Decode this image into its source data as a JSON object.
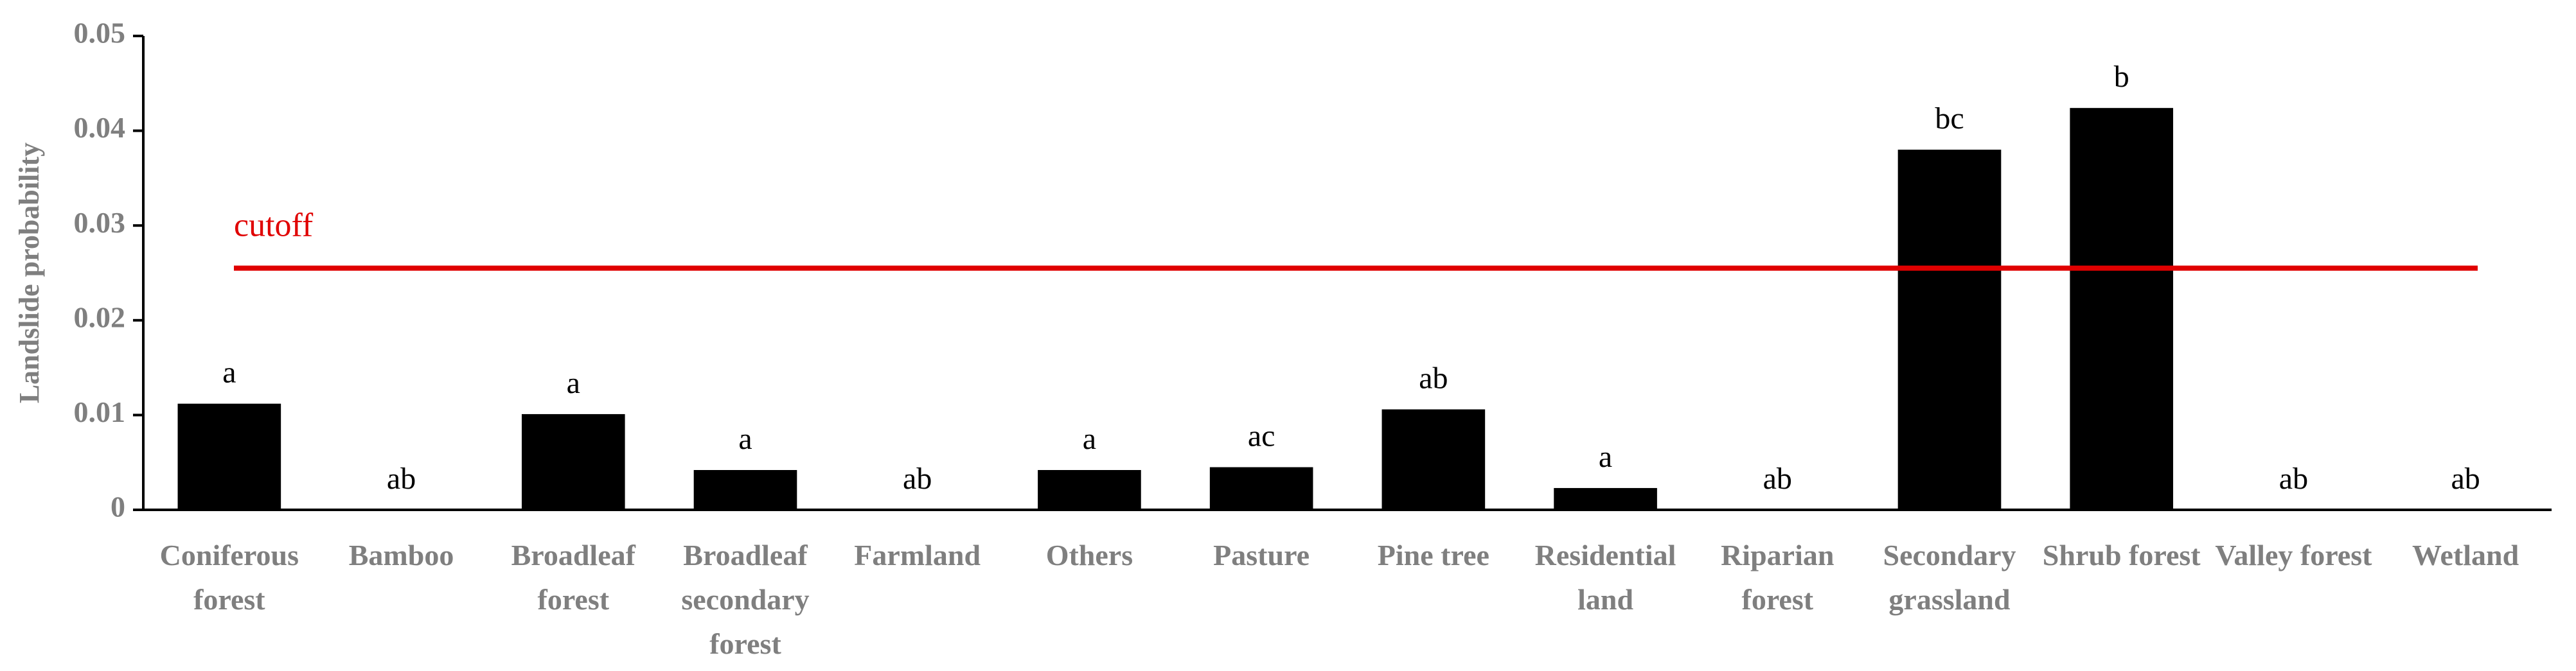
{
  "chart_data": {
    "type": "bar",
    "y_label": "Landslide probability",
    "categories": [
      "Coniferous forest",
      "Bamboo",
      "Broadleaf forest",
      "Broadleaf secondary forest",
      "Farmland",
      "Others",
      "Pasture",
      "Pine tree",
      "Residential land",
      "Riparian forest",
      "Secondary grassland",
      "Shrub forest",
      "Valley forest",
      "Wetland"
    ],
    "values": [
      0.0112,
      0,
      0.0101,
      0.0042,
      0,
      0.0042,
      0.0045,
      0.0106,
      0.0023,
      0,
      0.038,
      0.0424,
      0,
      0
    ],
    "letters": [
      "a",
      "ab",
      "a",
      "a",
      "ab",
      "a",
      "ac",
      "ab",
      "a",
      "ab",
      "bc",
      "b",
      "ab",
      "ab"
    ],
    "color": "#000000",
    "cutoff": {
      "label": "cutoff",
      "value": 0.0255,
      "color": "#e00000"
    },
    "ylim": [
      0,
      0.05
    ],
    "yticks": [
      0,
      0.01,
      0.02,
      0.03,
      0.04,
      0.05
    ]
  }
}
